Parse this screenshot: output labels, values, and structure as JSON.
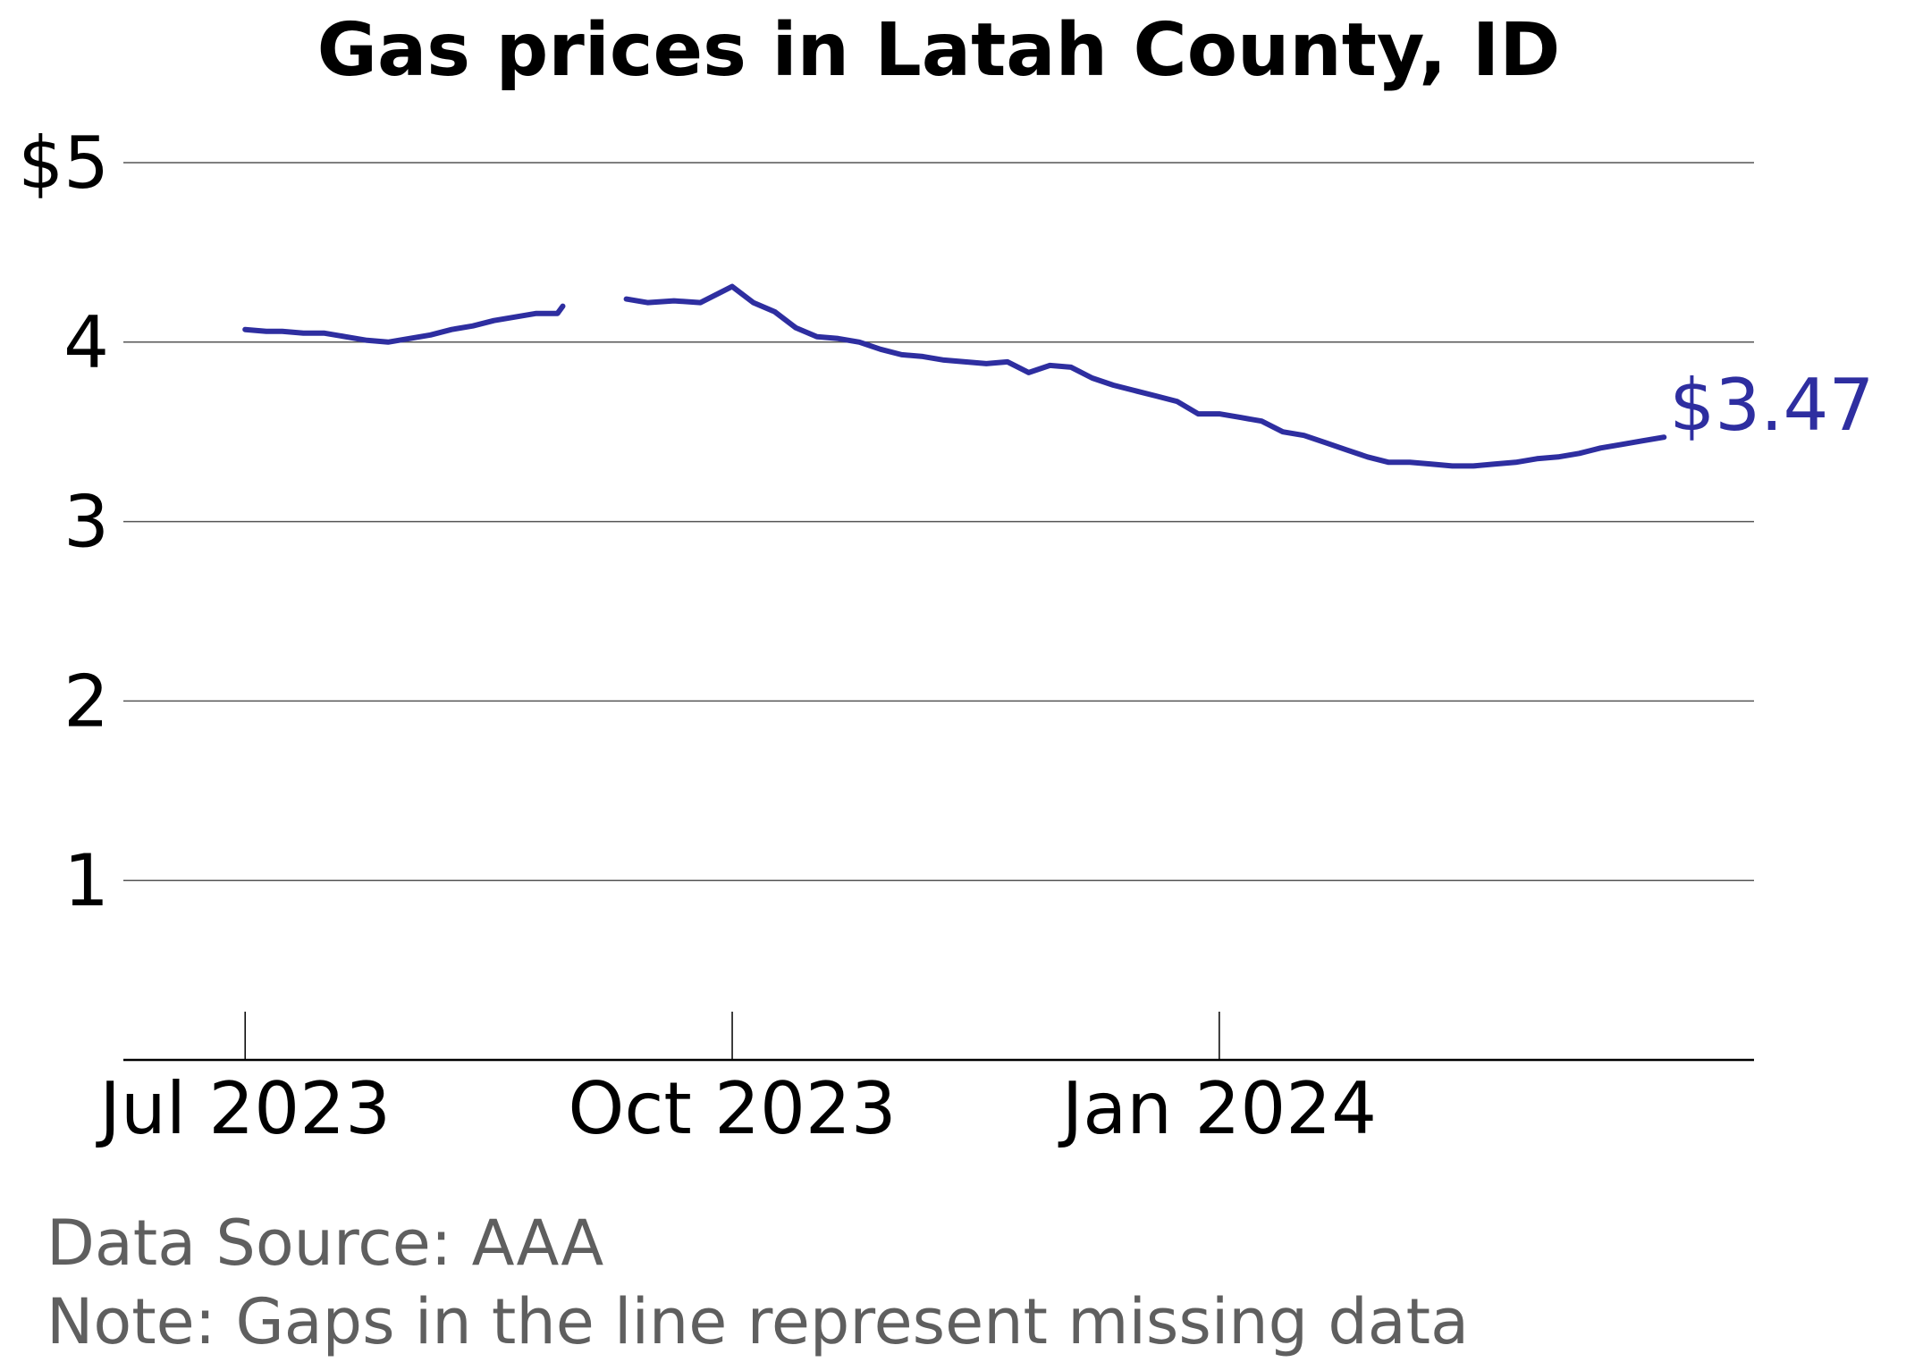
{
  "chart_data": {
    "type": "line",
    "title": "Gas prices in Latah County, ID",
    "xlabel": "",
    "ylabel": "",
    "ylim": [
      0,
      5.2
    ],
    "xlim": [
      "2023-06-08",
      "2024-04-11"
    ],
    "y_ticks": [
      {
        "value": 5,
        "label": "$5"
      },
      {
        "value": 4,
        "label": "4"
      },
      {
        "value": 3,
        "label": "3"
      },
      {
        "value": 2,
        "label": "2"
      },
      {
        "value": 1,
        "label": "1"
      }
    ],
    "x_ticks": [
      {
        "value": "2023-07-01",
        "label": "Jul 2023"
      },
      {
        "value": "2023-10-01",
        "label": "Oct 2023"
      },
      {
        "value": "2024-01-01",
        "label": "Jan 2024"
      }
    ],
    "grid": "horizontal",
    "line_color": "#2e2ea0",
    "gap_note": "Gaps in the line represent missing data",
    "end_label": "$3.47",
    "segments": [
      {
        "x": [
          "2023-07-01",
          "2023-07-05",
          "2023-07-08",
          "2023-07-12",
          "2023-07-16",
          "2023-07-20",
          "2023-07-24",
          "2023-07-28",
          "2023-08-01",
          "2023-08-05",
          "2023-08-09",
          "2023-08-13",
          "2023-08-17",
          "2023-08-21",
          "2023-08-25",
          "2023-08-29",
          "2023-08-30"
        ],
        "y": [
          4.07,
          4.06,
          4.06,
          4.05,
          4.05,
          4.03,
          4.01,
          4.0,
          4.02,
          4.04,
          4.07,
          4.09,
          4.12,
          4.14,
          4.16,
          4.16,
          4.2
        ]
      },
      {
        "x": [
          "2023-09-11",
          "2023-09-15",
          "2023-09-20",
          "2023-09-25",
          "2023-09-29",
          "2023-10-01",
          "2023-10-05",
          "2023-10-09",
          "2023-10-13",
          "2023-10-17",
          "2023-10-21",
          "2023-10-25",
          "2023-10-29",
          "2023-11-02",
          "2023-11-06",
          "2023-11-10",
          "2023-11-14",
          "2023-11-18",
          "2023-11-22",
          "2023-11-26",
          "2023-11-30",
          "2023-12-04",
          "2023-12-08",
          "2023-12-12",
          "2023-12-16",
          "2023-12-20",
          "2023-12-24",
          "2023-12-28",
          "2024-01-01",
          "2024-01-05",
          "2024-01-09",
          "2024-01-13",
          "2024-01-17",
          "2024-01-21",
          "2024-01-25",
          "2024-01-29",
          "2024-02-02",
          "2024-02-06",
          "2024-02-10",
          "2024-02-14",
          "2024-02-18",
          "2024-02-22",
          "2024-02-26",
          "2024-03-01",
          "2024-03-05",
          "2024-03-09",
          "2024-03-13",
          "2024-03-17",
          "2024-03-21",
          "2024-03-25"
        ],
        "y": [
          4.24,
          4.22,
          4.23,
          4.22,
          4.28,
          4.31,
          4.22,
          4.17,
          4.08,
          4.03,
          4.02,
          4.0,
          3.96,
          3.93,
          3.92,
          3.9,
          3.89,
          3.88,
          3.89,
          3.83,
          3.87,
          3.86,
          3.8,
          3.76,
          3.73,
          3.7,
          3.67,
          3.6,
          3.6,
          3.58,
          3.56,
          3.5,
          3.48,
          3.44,
          3.4,
          3.36,
          3.33,
          3.33,
          3.32,
          3.31,
          3.31,
          3.32,
          3.33,
          3.35,
          3.36,
          3.38,
          3.41,
          3.43,
          3.45,
          3.47
        ]
      }
    ]
  },
  "footer": {
    "source": "Data Source: AAA",
    "note": "Note: Gaps in the line represent missing data"
  }
}
